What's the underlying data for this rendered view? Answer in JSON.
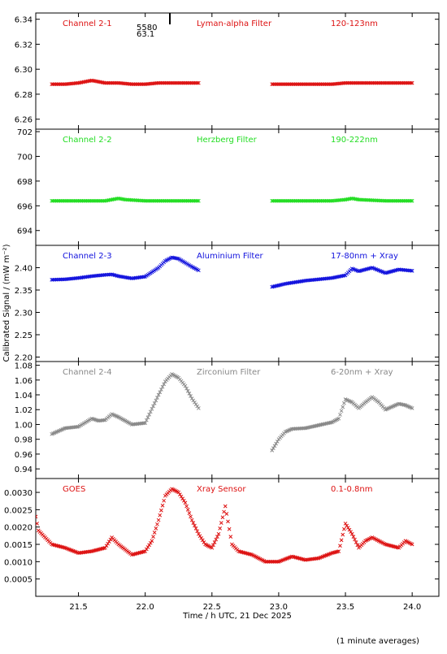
{
  "figure": {
    "xlabel": "Time / h UTC, 21 Dec 2025",
    "ylabel": "Calibrated Signal / (mW m⁻²)",
    "footnote": "(1 minute averages)",
    "marker_text": [
      "5580",
      "63.1"
    ]
  },
  "chart_data": [
    {
      "type": "scatter",
      "channel_label": "Channel 2-1",
      "filter_label": "Lyman-alpha Filter",
      "band_label": "120-123nm",
      "color": "#dd1111",
      "ylim": [
        6.252,
        6.345
      ],
      "yticks": [
        6.26,
        6.28,
        6.3,
        6.32,
        6.34
      ],
      "ytick_labels": [
        "6.26",
        "6.28",
        "6.30",
        "6.32",
        "6.34"
      ],
      "xlim": [
        21.18,
        24.2
      ],
      "series": [
        {
          "x": [
            21.3,
            21.4,
            21.5,
            21.55,
            21.6,
            21.65,
            21.7,
            21.8,
            21.9,
            22.0,
            22.1,
            22.2,
            22.3,
            22.4
          ],
          "y": [
            6.288,
            6.288,
            6.289,
            6.29,
            6.291,
            6.29,
            6.289,
            6.289,
            6.288,
            6.288,
            6.289,
            6.289,
            6.289,
            6.289
          ]
        },
        {
          "x": [
            22.95,
            23.1,
            23.2,
            23.3,
            23.4,
            23.5,
            23.6,
            23.7,
            23.8,
            23.9,
            24.0
          ],
          "y": [
            6.288,
            6.288,
            6.288,
            6.288,
            6.288,
            6.289,
            6.289,
            6.289,
            6.289,
            6.289,
            6.289
          ]
        }
      ]
    },
    {
      "type": "scatter",
      "channel_label": "Channel 2-2",
      "filter_label": "Herzberg Filter",
      "band_label": "190-222nm",
      "color": "#22dd22",
      "ylim": [
        692.8,
        702.2
      ],
      "yticks": [
        694,
        696,
        698,
        700,
        702
      ],
      "ytick_labels": [
        "694",
        "696",
        "698",
        "700",
        "702"
      ],
      "xlim": [
        21.18,
        24.2
      ],
      "series": [
        {
          "x": [
            21.3,
            21.5,
            21.7,
            21.75,
            21.8,
            21.85,
            22.0,
            22.2,
            22.4
          ],
          "y": [
            696.4,
            696.4,
            696.4,
            696.5,
            696.6,
            696.5,
            696.4,
            696.4,
            696.4
          ]
        },
        {
          "x": [
            22.95,
            23.2,
            23.4,
            23.5,
            23.55,
            23.6,
            23.8,
            24.0
          ],
          "y": [
            696.4,
            696.4,
            696.4,
            696.5,
            696.6,
            696.5,
            696.4,
            696.4
          ]
        }
      ]
    },
    {
      "type": "scatter",
      "channel_label": "Channel 2-3",
      "filter_label": "Aluminium Filter",
      "band_label": "17-80nm + Xray",
      "color": "#1111dd",
      "ylim": [
        2.19,
        2.45
      ],
      "yticks": [
        2.2,
        2.25,
        2.3,
        2.35,
        2.4
      ],
      "ytick_labels": [
        "2.20",
        "2.25",
        "2.30",
        "2.35",
        "2.40"
      ],
      "xlim": [
        21.18,
        24.2
      ],
      "series": [
        {
          "x": [
            21.3,
            21.4,
            21.5,
            21.6,
            21.7,
            21.75,
            21.8,
            21.9,
            22.0,
            22.1,
            22.15,
            22.2,
            22.25,
            22.3,
            22.35,
            22.4
          ],
          "y": [
            2.373,
            2.374,
            2.377,
            2.381,
            2.384,
            2.385,
            2.381,
            2.376,
            2.38,
            2.4,
            2.415,
            2.423,
            2.42,
            2.411,
            2.402,
            2.394
          ]
        },
        {
          "x": [
            22.95,
            23.05,
            23.2,
            23.4,
            23.5,
            23.55,
            23.6,
            23.7,
            23.8,
            23.9,
            24.0
          ],
          "y": [
            2.357,
            2.364,
            2.371,
            2.377,
            2.383,
            2.398,
            2.392,
            2.4,
            2.388,
            2.396,
            2.393
          ]
        }
      ]
    },
    {
      "type": "scatter",
      "channel_label": "Channel 2-4",
      "filter_label": "Zirconium Filter",
      "band_label": "6-20nm + Xray",
      "color": "#888888",
      "ylim": [
        0.927,
        1.085
      ],
      "yticks": [
        0.94,
        0.96,
        0.98,
        1.0,
        1.02,
        1.04,
        1.06,
        1.08
      ],
      "ytick_labels": [
        "0.94",
        "0.96",
        "0.98",
        "1.00",
        "1.02",
        "1.04",
        "1.06",
        "1.08"
      ],
      "xlim": [
        21.18,
        24.2
      ],
      "series": [
        {
          "x": [
            21.3,
            21.4,
            21.5,
            21.6,
            21.65,
            21.7,
            21.75,
            21.8,
            21.9,
            22.0,
            22.1,
            22.15,
            22.2,
            22.25,
            22.3,
            22.35,
            22.4
          ],
          "y": [
            0.987,
            0.995,
            0.997,
            1.008,
            1.005,
            1.006,
            1.014,
            1.01,
            1.0,
            1.002,
            1.04,
            1.058,
            1.068,
            1.063,
            1.052,
            1.035,
            1.022
          ]
        },
        {
          "x": [
            22.95,
            23.0,
            23.05,
            23.1,
            23.2,
            23.3,
            23.4,
            23.45,
            23.5,
            23.55,
            23.6,
            23.65,
            23.7,
            23.75,
            23.8,
            23.9,
            23.95,
            24.0
          ],
          "y": [
            0.965,
            0.98,
            0.99,
            0.994,
            0.995,
            0.999,
            1.003,
            1.008,
            1.034,
            1.03,
            1.022,
            1.03,
            1.037,
            1.03,
            1.02,
            1.028,
            1.026,
            1.022
          ]
        }
      ]
    },
    {
      "type": "scatter",
      "channel_label": "GOES",
      "filter_label": "Xray Sensor",
      "band_label": "0.1-0.8nm",
      "color": "#dd1111",
      "ylim": [
        0.0,
        0.0034
      ],
      "yticks": [
        0.0005,
        0.001,
        0.0015,
        0.002,
        0.0025,
        0.003
      ],
      "ytick_labels": [
        "0.0005",
        "0.0010",
        "0.0015",
        "0.0020",
        "0.0025",
        "0.0030"
      ],
      "xlim": [
        21.18,
        24.2
      ],
      "series": [
        {
          "x": [
            21.18,
            21.2,
            21.25,
            21.3,
            21.4,
            21.5,
            21.6,
            21.7,
            21.75,
            21.8,
            21.9,
            22.0,
            22.05,
            22.1,
            22.15,
            22.2,
            22.25,
            22.3,
            22.35,
            22.4,
            22.45,
            22.5,
            22.55,
            22.6,
            22.65,
            22.7,
            22.8,
            22.9,
            23.0,
            23.1,
            23.2,
            23.3,
            23.4,
            23.45,
            23.5,
            23.55,
            23.6,
            23.65,
            23.7,
            23.8,
            23.9,
            23.95,
            24.0
          ],
          "y": [
            0.0023,
            0.0019,
            0.0017,
            0.0015,
            0.0014,
            0.00125,
            0.0013,
            0.0014,
            0.0017,
            0.0015,
            0.0012,
            0.0013,
            0.0016,
            0.0022,
            0.0029,
            0.0031,
            0.003,
            0.0027,
            0.0022,
            0.0018,
            0.0015,
            0.0014,
            0.0018,
            0.0026,
            0.0015,
            0.0013,
            0.0012,
            0.001,
            0.001,
            0.00115,
            0.00105,
            0.0011,
            0.00125,
            0.0013,
            0.0021,
            0.0018,
            0.0014,
            0.0016,
            0.0017,
            0.0015,
            0.0014,
            0.0016,
            0.0015
          ]
        }
      ]
    }
  ],
  "x_axis": {
    "xlim": [
      21.18,
      24.2
    ],
    "ticks": [
      21.5,
      22.0,
      22.5,
      23.0,
      23.5,
      24.0
    ],
    "tick_labels": [
      "21.5",
      "22.0",
      "22.5",
      "23.0",
      "23.5",
      "24.0"
    ]
  }
}
